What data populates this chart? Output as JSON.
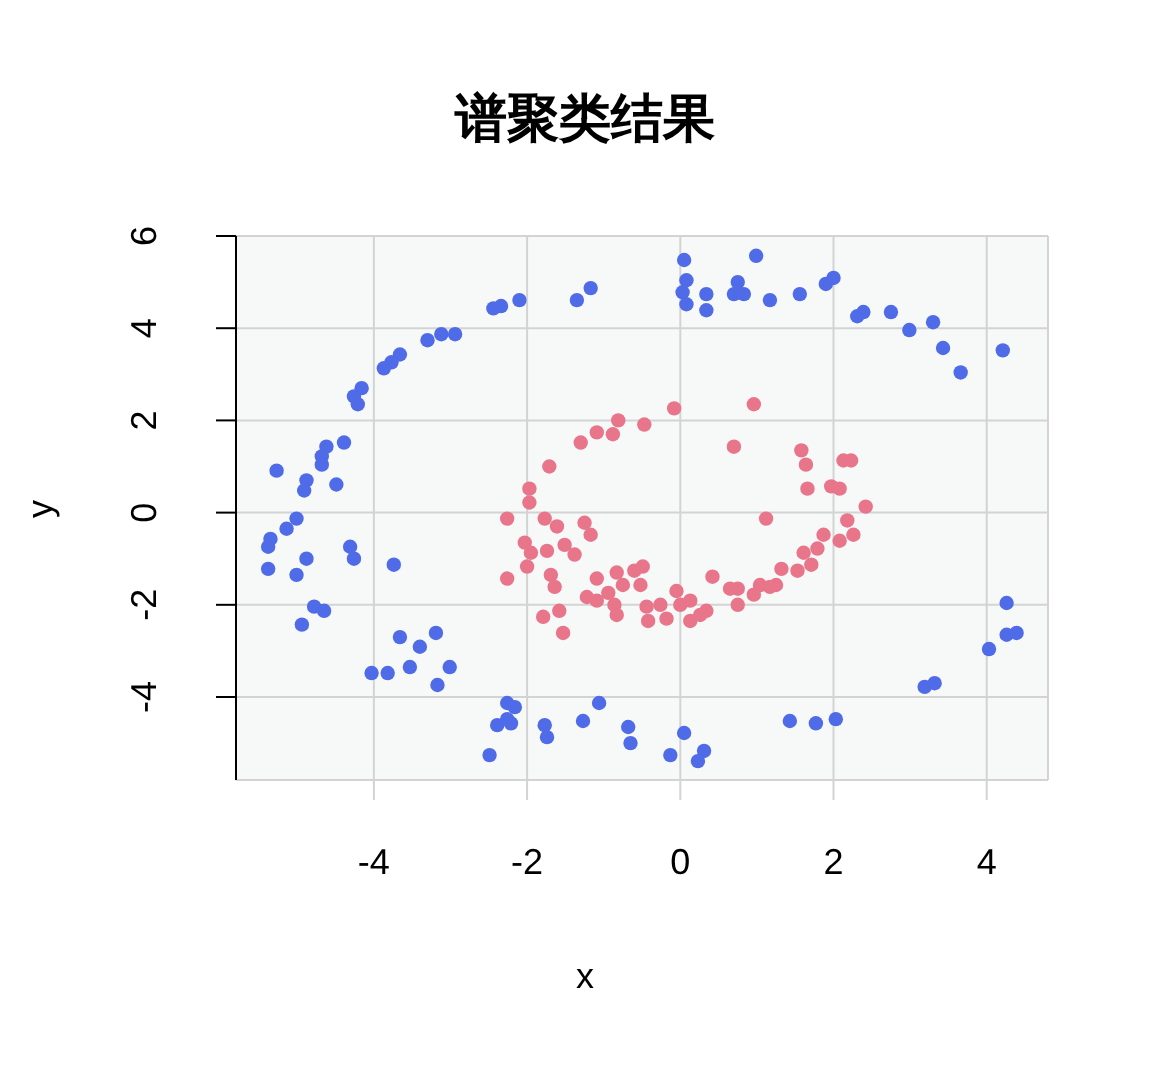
{
  "chart_data": {
    "type": "scatter",
    "title": "谱聚类结果",
    "xlabel": "x",
    "ylabel": "y",
    "xlim": [
      -5.8,
      4.8
    ],
    "ylim": [
      -5.8,
      6
    ],
    "xticks": [
      -4,
      -2,
      0,
      2,
      4
    ],
    "yticks": [
      -4,
      -2,
      0,
      2,
      4,
      6
    ],
    "grid": true,
    "legend": false,
    "marker": "circle",
    "series": [
      {
        "color": "#4f6be8",
        "x": [
          0.05,
          0.08,
          0.03,
          0.08,
          0.34,
          0.34,
          0.99,
          0.75,
          0.7,
          0.83,
          1.17,
          1.56,
          1.9,
          2.0,
          2.31,
          2.39,
          2.75,
          2.99,
          3.3,
          3.43,
          3.66,
          4.21,
          -1.17,
          -1.35,
          -2.1,
          -2.34,
          -2.44,
          -2.94,
          -3.12,
          -3.3,
          -3.66,
          -3.77,
          -3.87,
          -4.16,
          -4.26,
          -4.21,
          -4.39,
          -4.62,
          -4.68,
          -4.68,
          -4.49,
          -4.88,
          -4.91,
          -5.27,
          -5.01,
          -5.14,
          -5.35,
          -5.38,
          -5.38,
          -5.01,
          -4.88,
          -4.31,
          -4.26,
          -3.74,
          -4.78,
          -4.65,
          -4.94,
          -3.66,
          -3.4,
          -3.19,
          -3.01,
          -3.17,
          -3.53,
          -3.82,
          -4.03,
          -2.26,
          -2.16,
          -2.39,
          -2.26,
          -2.21,
          -2.49,
          -1.77,
          -1.74,
          -1.27,
          -1.06,
          -0.68,
          -0.65,
          -0.13,
          0.05,
          0.23,
          0.31,
          1.43,
          1.77,
          2.03,
          3.19,
          3.32,
          4.03,
          4.26,
          4.39,
          4.26
        ],
        "values": [
          5.48,
          5.04,
          4.78,
          4.52,
          4.74,
          4.39,
          5.57,
          5.0,
          4.74,
          4.74,
          4.61,
          4.74,
          4.96,
          5.09,
          4.26,
          4.35,
          4.35,
          3.96,
          4.13,
          3.57,
          3.04,
          3.52,
          4.87,
          4.61,
          4.61,
          4.48,
          4.43,
          3.87,
          3.87,
          3.74,
          3.43,
          3.26,
          3.13,
          2.7,
          2.52,
          2.35,
          1.52,
          1.43,
          1.22,
          1.04,
          0.61,
          0.7,
          0.48,
          0.91,
          -0.13,
          -0.35,
          -0.57,
          -0.74,
          -1.22,
          -1.35,
          -1.0,
          -0.74,
          -1.0,
          -1.13,
          -2.04,
          -2.13,
          -2.43,
          -2.7,
          -2.91,
          -2.61,
          -3.35,
          -3.74,
          -3.35,
          -3.48,
          -3.48,
          -4.13,
          -4.22,
          -4.61,
          -4.48,
          -4.57,
          -5.26,
          -4.61,
          -4.87,
          -4.52,
          -4.13,
          -4.65,
          -5.0,
          -5.26,
          -4.78,
          -5.39,
          -5.17,
          -4.52,
          -4.57,
          -4.48,
          -3.78,
          -3.7,
          -2.96,
          -2.65,
          -2.61,
          -1.96
        ]
      },
      {
        "color": "#e8758a",
        "x": [
          -0.08,
          -0.47,
          -0.81,
          -0.88,
          -1.09,
          -1.3,
          -1.71,
          -1.97,
          -1.97,
          0.96,
          0.7,
          1.58,
          1.64,
          1.66,
          1.97,
          2.08,
          2.13,
          2.23,
          2.42,
          -2.26,
          -2.03,
          -1.95,
          -1.77,
          -1.61,
          -1.51,
          -1.74,
          -1.38,
          -1.25,
          -1.17,
          -2.0,
          -2.26,
          -1.69,
          -1.64,
          -1.09,
          -0.94,
          -0.83,
          -0.75,
          -0.6,
          -0.52,
          -0.49,
          -1.22,
          -1.09,
          -0.86,
          -0.83,
          -0.44,
          -0.42,
          -0.26,
          -0.18,
          -0.05,
          0.0,
          0.13,
          0.13,
          -1.79,
          -1.58,
          -1.53,
          1.12,
          2.18,
          2.26,
          1.87,
          2.08,
          1.79,
          1.61,
          1.71,
          1.53,
          1.32,
          1.25,
          1.04,
          1.17,
          0.96,
          0.75,
          0.65,
          0.75,
          0.42,
          0.34,
          0.26
        ],
        "values": [
          2.26,
          1.91,
          2.0,
          1.7,
          1.74,
          1.52,
          1.0,
          0.52,
          0.22,
          2.35,
          1.43,
          1.35,
          1.04,
          0.52,
          0.57,
          0.52,
          1.13,
          1.13,
          0.13,
          -0.13,
          -0.65,
          -0.87,
          -0.13,
          -0.3,
          -0.7,
          -0.83,
          -0.91,
          -0.22,
          -0.48,
          -1.17,
          -1.43,
          -1.35,
          -1.61,
          -1.43,
          -1.74,
          -1.3,
          -1.57,
          -1.26,
          -1.57,
          -1.17,
          -1.83,
          -1.91,
          -2.0,
          -2.22,
          -2.04,
          -2.35,
          -2.0,
          -2.3,
          -1.7,
          -2.0,
          -2.35,
          -1.91,
          -2.26,
          -2.13,
          -2.61,
          -0.13,
          -0.17,
          -0.48,
          -0.48,
          -0.61,
          -0.78,
          -0.87,
          -1.13,
          -1.26,
          -1.22,
          -1.57,
          -1.57,
          -1.61,
          -1.78,
          -1.65,
          -1.65,
          -2.0,
          -1.39,
          -2.13,
          -2.22
        ]
      }
    ]
  }
}
